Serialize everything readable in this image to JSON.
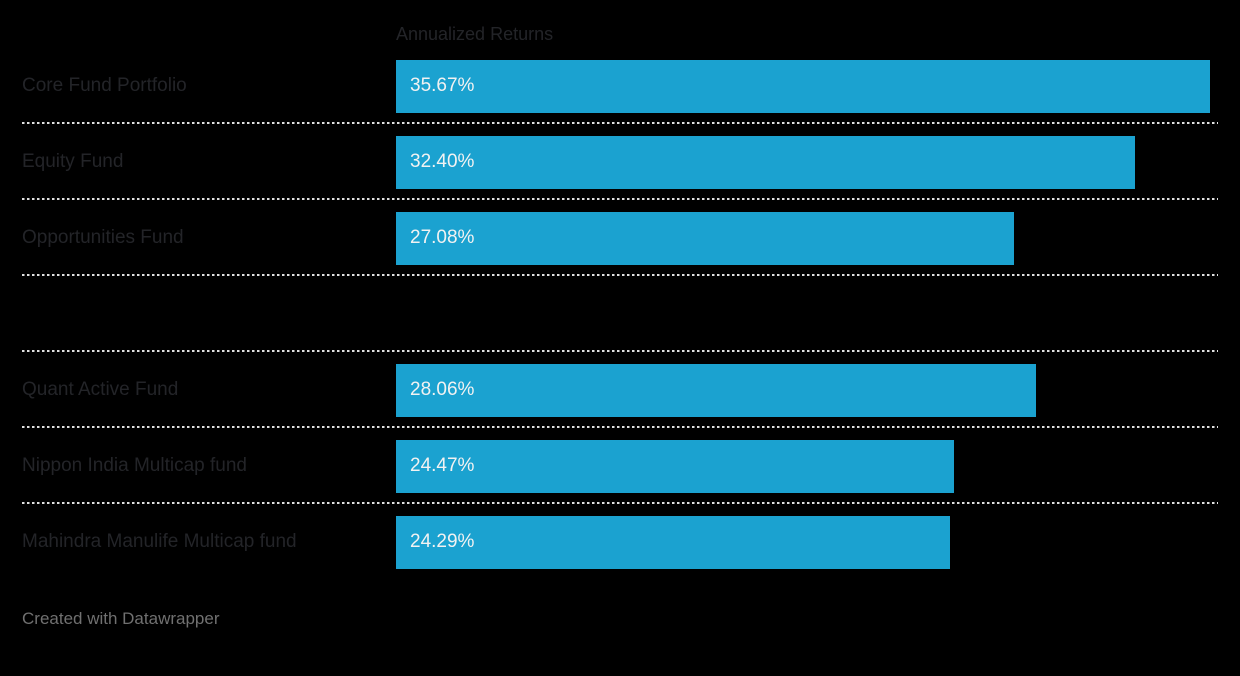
{
  "chart": {
    "column_header": "Annualized Returns",
    "attribution": "Created with Datawrapper"
  },
  "colors": {
    "background": "#000000",
    "bar_fill": "#1BA2D0",
    "bar_value_text": "#F2F2F2",
    "category_label_text": "#232428",
    "column_header_text": "#232428",
    "separator_dots": "#E0E0E0",
    "attribution_text": "#707070"
  },
  "chart_data": {
    "type": "bar",
    "orientation": "horizontal",
    "title": "Annualized Returns",
    "xlabel": "",
    "ylabel": "",
    "categories": [
      "Core Fund Portfolio",
      "Equity Fund",
      "Opportunities Fund",
      "",
      "Quant Active Fund",
      "Nippon India Multicap fund",
      "Mahindra Manulife Multicap fund"
    ],
    "values": [
      35.67,
      32.4,
      27.08,
      null,
      28.06,
      24.47,
      24.29
    ],
    "value_labels": [
      "35.67%",
      "32.40%",
      "27.08%",
      null,
      "28.06%",
      "24.47%",
      "24.29%"
    ],
    "xlim": [
      0,
      35.67
    ],
    "grid": false,
    "legend": false,
    "value_label_position": "inside-start",
    "row_separators": "dotted"
  }
}
